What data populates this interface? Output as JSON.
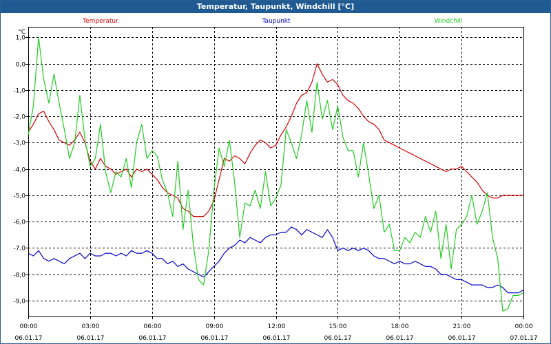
{
  "window_title": "Temperatur, Taupunkt, Windchill [°C]",
  "chart_data": {
    "type": "line",
    "title": "Temperatur, Taupunkt, Windchill [°C]",
    "ylabel": "°C",
    "ylim": [
      -9.6,
      1.4
    ],
    "yticks": [
      1.0,
      0.0,
      -1.0,
      -2.0,
      -3.0,
      -4.0,
      -5.0,
      -6.0,
      -7.0,
      -8.0,
      -9.0
    ],
    "ytick_labels": [
      "1,0",
      "0,0",
      "-1,0",
      "-2,0",
      "-3,0",
      "-4,0",
      "-5,0",
      "-6,0",
      "-7,0",
      "-8,0",
      "-9,0"
    ],
    "xlim": [
      0,
      24
    ],
    "xticks": [
      0,
      3,
      6,
      9,
      12,
      15,
      18,
      21,
      24
    ],
    "xtick_times": [
      "00:00",
      "03:00",
      "06:00",
      "09:00",
      "12:00",
      "15:00",
      "18:00",
      "21:00",
      "00:00"
    ],
    "xtick_dates": [
      "06.01.17",
      "06.01.17",
      "06.01.17",
      "06.01.17",
      "06.01.17",
      "06.01.17",
      "06.01.17",
      "06.01.17",
      "07.01.17"
    ],
    "grid": true,
    "series": [
      {
        "name": "Temperatur",
        "color": "#d40000",
        "x": [
          0.0,
          0.25,
          0.5,
          0.75,
          1.0,
          1.25,
          1.5,
          1.75,
          2.0,
          2.25,
          2.5,
          2.75,
          3.0,
          3.25,
          3.5,
          3.75,
          4.0,
          4.25,
          4.5,
          4.75,
          5.0,
          5.25,
          5.5,
          5.75,
          6.0,
          6.25,
          6.5,
          6.75,
          7.0,
          7.25,
          7.5,
          7.75,
          8.0,
          8.25,
          8.5,
          8.75,
          9.0,
          9.25,
          9.5,
          9.75,
          10.0,
          10.25,
          10.5,
          10.75,
          11.0,
          11.25,
          11.5,
          11.75,
          12.0,
          12.25,
          12.5,
          12.75,
          13.0,
          13.25,
          13.5,
          13.75,
          14.0,
          14.25,
          14.5,
          14.75,
          15.0,
          15.25,
          15.5,
          15.75,
          16.0,
          16.25,
          16.5,
          16.75,
          17.0,
          17.25,
          17.5,
          17.75,
          18.0,
          18.25,
          18.5,
          18.75,
          19.0,
          19.25,
          19.5,
          19.75,
          20.0,
          20.25,
          20.5,
          20.75,
          21.0,
          21.25,
          21.5,
          21.75,
          22.0,
          22.25,
          22.5,
          22.75,
          23.0,
          23.25,
          23.5,
          23.75,
          24.0
        ],
        "values": [
          -2.6,
          -2.3,
          -1.9,
          -1.8,
          -2.2,
          -2.5,
          -2.9,
          -3.0,
          -3.1,
          -2.9,
          -2.6,
          -3.0,
          -3.7,
          -4.0,
          -3.6,
          -3.9,
          -4.0,
          -4.2,
          -4.1,
          -4.0,
          -4.3,
          -4.0,
          -4.1,
          -4.0,
          -4.2,
          -4.4,
          -4.7,
          -4.9,
          -5.0,
          -5.1,
          -5.5,
          -5.6,
          -5.8,
          -5.8,
          -5.8,
          -5.6,
          -5.2,
          -4.4,
          -3.6,
          -3.7,
          -3.5,
          -3.6,
          -3.8,
          -3.4,
          -3.1,
          -2.9,
          -3.0,
          -3.2,
          -3.1,
          -2.7,
          -2.4,
          -2.0,
          -1.5,
          -1.2,
          -1.1,
          -0.7,
          0.0,
          -0.4,
          -0.7,
          -0.6,
          -0.8,
          -1.2,
          -1.4,
          -1.5,
          -1.7,
          -2.0,
          -2.2,
          -2.3,
          -2.5,
          -2.9,
          -3.0,
          -3.1,
          -3.2,
          -3.3,
          -3.4,
          -3.5,
          -3.6,
          -3.7,
          -3.8,
          -3.9,
          -4.0,
          -4.1,
          -4.0,
          -4.0,
          -3.9,
          -4.1,
          -4.3,
          -4.5,
          -4.8,
          -5.0,
          -5.1,
          -5.1,
          -5.0,
          -5.0,
          -5.0,
          -5.0,
          -5.0
        ]
      },
      {
        "name": "Taupunkt",
        "color": "#0000c8",
        "x": [
          0.0,
          0.25,
          0.5,
          0.75,
          1.0,
          1.25,
          1.5,
          1.75,
          2.0,
          2.25,
          2.5,
          2.75,
          3.0,
          3.25,
          3.5,
          3.75,
          4.0,
          4.25,
          4.5,
          4.75,
          5.0,
          5.25,
          5.5,
          5.75,
          6.0,
          6.25,
          6.5,
          6.75,
          7.0,
          7.25,
          7.5,
          7.75,
          8.0,
          8.25,
          8.5,
          8.75,
          9.0,
          9.25,
          9.5,
          9.75,
          10.0,
          10.25,
          10.5,
          10.75,
          11.0,
          11.25,
          11.5,
          11.75,
          12.0,
          12.25,
          12.5,
          12.75,
          13.0,
          13.25,
          13.5,
          13.75,
          14.0,
          14.25,
          14.5,
          14.75,
          15.0,
          15.25,
          15.5,
          15.75,
          16.0,
          16.25,
          16.5,
          16.75,
          17.0,
          17.25,
          17.5,
          17.75,
          18.0,
          18.25,
          18.5,
          18.75,
          19.0,
          19.25,
          19.5,
          19.75,
          20.0,
          20.25,
          20.5,
          20.75,
          21.0,
          21.25,
          21.5,
          21.75,
          22.0,
          22.25,
          22.5,
          22.75,
          23.0,
          23.25,
          23.5,
          23.75,
          24.0
        ],
        "values": [
          -7.2,
          -7.3,
          -7.1,
          -7.4,
          -7.5,
          -7.4,
          -7.5,
          -7.6,
          -7.4,
          -7.3,
          -7.2,
          -7.4,
          -7.2,
          -7.3,
          -7.3,
          -7.2,
          -7.2,
          -7.3,
          -7.2,
          -7.3,
          -7.1,
          -7.2,
          -7.2,
          -7.1,
          -7.2,
          -7.4,
          -7.4,
          -7.6,
          -7.5,
          -7.7,
          -7.6,
          -7.8,
          -7.9,
          -8.0,
          -8.1,
          -7.9,
          -7.7,
          -7.5,
          -7.2,
          -7.0,
          -6.9,
          -6.7,
          -6.8,
          -6.6,
          -6.7,
          -6.8,
          -6.6,
          -6.5,
          -6.5,
          -6.4,
          -6.4,
          -6.2,
          -6.3,
          -6.5,
          -6.3,
          -6.4,
          -6.5,
          -6.6,
          -6.3,
          -6.6,
          -7.1,
          -7.0,
          -7.1,
          -7.0,
          -7.1,
          -7.0,
          -7.1,
          -7.3,
          -7.4,
          -7.4,
          -7.5,
          -7.6,
          -7.5,
          -7.6,
          -7.6,
          -7.5,
          -7.6,
          -7.7,
          -7.7,
          -7.8,
          -8.0,
          -8.0,
          -8.1,
          -8.2,
          -8.2,
          -8.3,
          -8.4,
          -8.4,
          -8.4,
          -8.5,
          -8.5,
          -8.4,
          -8.5,
          -8.7,
          -8.7,
          -8.7,
          -8.6
        ]
      },
      {
        "name": "Windchill",
        "color": "#22cc22",
        "x": [
          0.0,
          0.25,
          0.5,
          0.75,
          1.0,
          1.25,
          1.5,
          1.75,
          2.0,
          2.25,
          2.5,
          2.75,
          3.0,
          3.25,
          3.5,
          3.75,
          4.0,
          4.25,
          4.5,
          4.75,
          5.0,
          5.25,
          5.5,
          5.75,
          6.0,
          6.25,
          6.5,
          6.75,
          7.0,
          7.25,
          7.5,
          7.75,
          8.0,
          8.25,
          8.5,
          8.75,
          9.0,
          9.25,
          9.5,
          9.75,
          10.0,
          10.25,
          10.5,
          10.75,
          11.0,
          11.25,
          11.5,
          11.75,
          12.0,
          12.25,
          12.5,
          12.75,
          13.0,
          13.25,
          13.5,
          13.75,
          14.0,
          14.25,
          14.5,
          14.75,
          15.0,
          15.25,
          15.5,
          15.75,
          16.0,
          16.25,
          16.5,
          16.75,
          17.0,
          17.25,
          17.5,
          17.75,
          18.0,
          18.25,
          18.5,
          18.75,
          19.0,
          19.25,
          19.5,
          19.75,
          20.0,
          20.25,
          20.5,
          20.75,
          21.0,
          21.25,
          21.5,
          21.75,
          22.0,
          22.25,
          22.5,
          22.75,
          23.0,
          23.25,
          23.5,
          23.75,
          24.0
        ],
        "values": [
          -2.7,
          -1.6,
          1.0,
          -0.6,
          -1.5,
          -0.4,
          -1.5,
          -2.5,
          -3.6,
          -3.0,
          -1.2,
          -2.9,
          -3.9,
          -3.6,
          -2.3,
          -4.1,
          -4.9,
          -4.1,
          -4.3,
          -3.6,
          -4.7,
          -3.0,
          -2.3,
          -3.6,
          -3.3,
          -3.5,
          -4.4,
          -4.9,
          -5.8,
          -3.7,
          -6.3,
          -4.8,
          -6.9,
          -8.2,
          -8.4,
          -7.1,
          -4.8,
          -3.2,
          -3.9,
          -2.9,
          -4.5,
          -6.6,
          -5.3,
          -5.4,
          -4.8,
          -5.5,
          -4.1,
          -5.4,
          -5.1,
          -4.6,
          -2.5,
          -3.0,
          -3.6,
          -2.7,
          -1.4,
          -2.6,
          -0.7,
          -2.1,
          -1.4,
          -2.5,
          -1.6,
          -2.8,
          -3.3,
          -3.3,
          -4.3,
          -3.0,
          -4.2,
          -5.5,
          -5.0,
          -6.4,
          -6.1,
          -7.1,
          -7.1,
          -6.6,
          -6.8,
          -6.4,
          -6.6,
          -5.8,
          -6.4,
          -5.6,
          -7.4,
          -6.1,
          -7.8,
          -6.3,
          -6.1,
          -5.8,
          -5.0,
          -6.1,
          -5.6,
          -4.9,
          -6.6,
          -7.4,
          -9.4,
          -9.3,
          -8.8,
          -8.8,
          -8.7
        ]
      }
    ]
  }
}
